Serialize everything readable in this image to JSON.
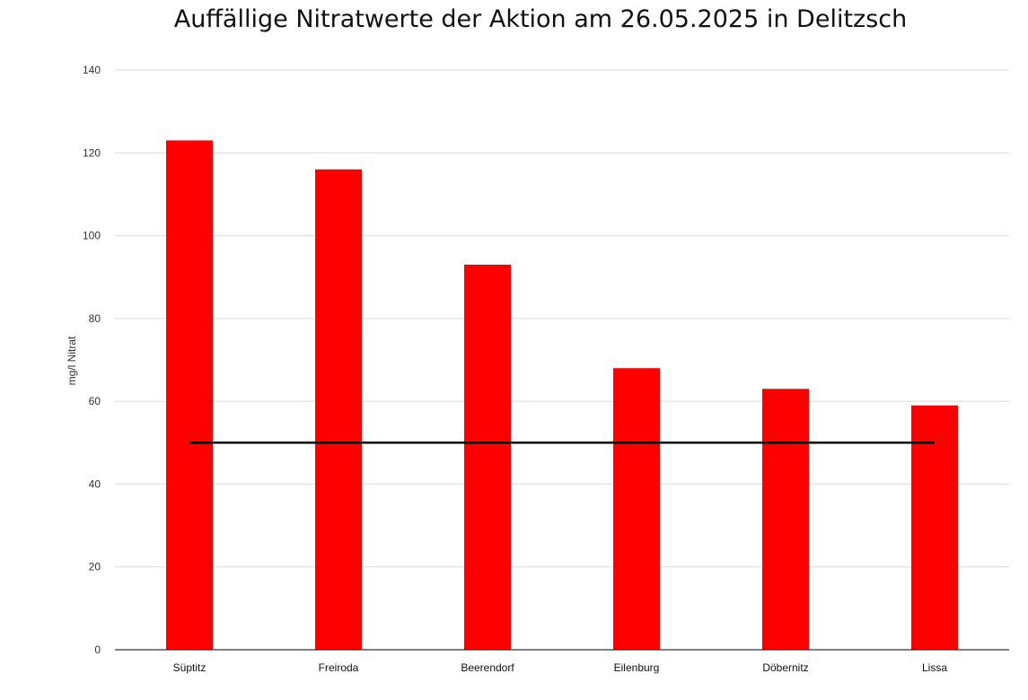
{
  "chart_data": {
    "type": "bar",
    "title": "Auffällige Nitratwerte der Aktion am 26.05.2025 in Delitzsch",
    "xlabel": "",
    "ylabel": "mg/l Nitrat",
    "categories": [
      "Süptitz",
      "Freiroda",
      "Beerendorf",
      "Eilenburg",
      "Döbernitz",
      "Lissa"
    ],
    "series": [
      {
        "values": [
          123,
          116,
          93,
          68,
          63,
          59
        ],
        "color": "#ff0000"
      }
    ],
    "reference_line": {
      "value": 50,
      "color": "#000000"
    },
    "ylim": [
      0,
      140
    ],
    "yticks": [
      0,
      20,
      40,
      60,
      80,
      100,
      120,
      140
    ],
    "grid": true,
    "legend": "none"
  }
}
